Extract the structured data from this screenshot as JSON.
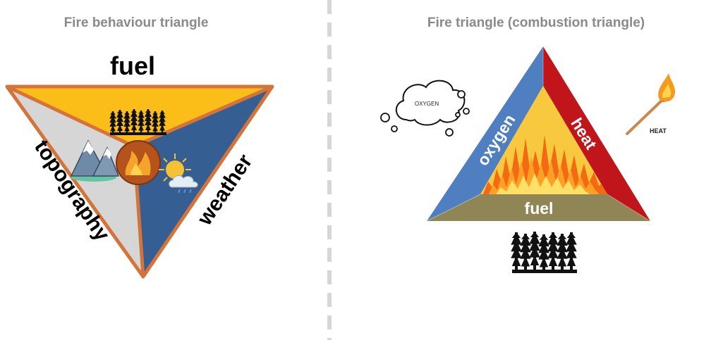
{
  "left_panel": {
    "title": "Fire behaviour triangle",
    "labels": {
      "fuel": "fuel",
      "topography": "topography",
      "weather": "weather"
    },
    "icons": [
      "forest-icon",
      "mountain-icon",
      "fire-icon",
      "weather-icon"
    ],
    "colors": {
      "border": "#d4743a",
      "fuel": "#fbbd18",
      "topography": "#d6d6d6",
      "weather": "#355f93",
      "center": "#b5531c"
    }
  },
  "right_panel": {
    "title": "Fire triangle (combustion triangle)",
    "labels": {
      "oxygen": "oxygen",
      "heat": "heat",
      "fuel": "fuel",
      "oxygen_cloud": "OXYGEN",
      "heat_match": "HEAT"
    },
    "icons": [
      "oxygen-cloud-icon",
      "match-icon",
      "flame-icon",
      "forest-icon"
    ],
    "colors": {
      "oxygen": "#4f7fc0",
      "heat": "#c0151b",
      "fuel": "#908655",
      "center": "#f8c83e"
    }
  }
}
